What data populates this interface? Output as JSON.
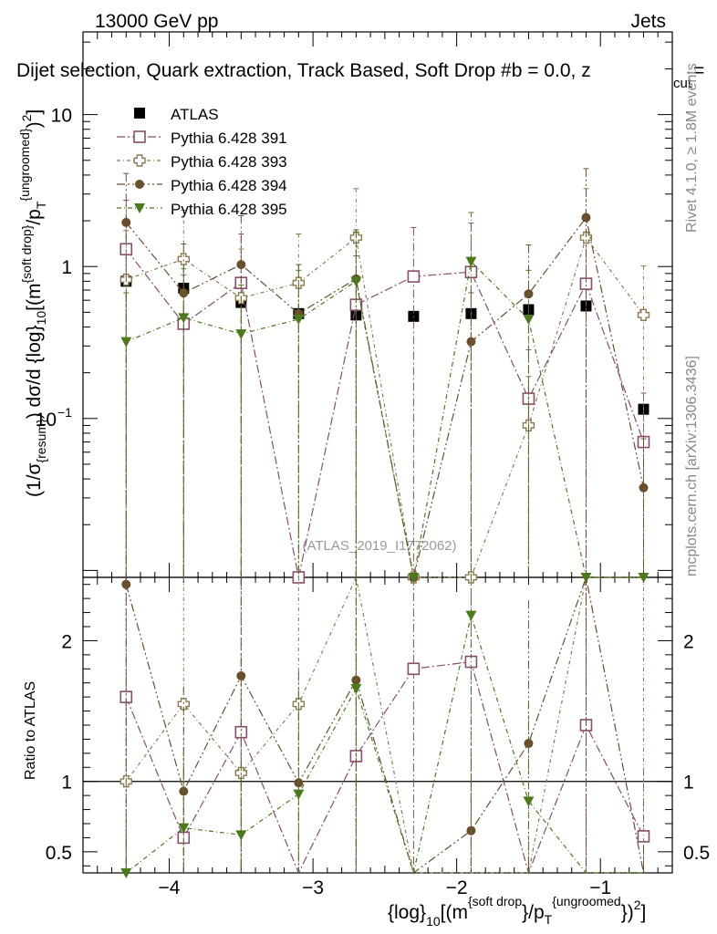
{
  "header": {
    "left": "13000 GeV pp",
    "right": "Jets"
  },
  "chart_data": {
    "type": "scatter",
    "title": "Dijet selection, Quark extraction, Track Based, Soft Drop #b = 0.0, z",
    "title_tail": "= 0.0, z",
    "title_sub": "cut",
    "title_end": " =",
    "watermark": "(ATLAS_2019_I1772062)",
    "rivet_label": "Rivet 4.1.0, ≥ 1.8M events",
    "mcplots_label": "mcplots.cern.ch [arXiv:1306.3436]",
    "ylabel": "(1/σ_{resum}) dσ/d {log}_{10}[(m^{soft drop}/p_{T}^{ungroomed})^{2}]",
    "ylabel_parts": {
      "a": "(1/σ",
      "a_sub": "{resum}",
      "b": ") dσ/d {log}",
      "b_sub": "10",
      "c": "[(m",
      "c_sup": "{soft drop}",
      "d": "/p",
      "d_sub": "T",
      "d_sup": "{ungroomed}",
      "e": ")",
      "e_sup": "2",
      "f": "]"
    },
    "xlabel": "{log}_{10}[(m^{soft drop}/p_{T}^{ungroomed})^{2}]",
    "xlabel_parts": {
      "a": "{log}",
      "a_sub": "10",
      "b": "[(m",
      "b_sup": "{soft drop",
      "c": "}/p",
      "c_sub": "T",
      "c_sup": "{ungroomed",
      "d": "})",
      "d_sup": "2",
      "e": "]"
    },
    "ratio_ylabel": "Ratio to ATLAS",
    "xlim": [
      -4.6,
      -0.5
    ],
    "ylim_main": [
      0.009,
      35
    ],
    "ylim_ratio": [
      0.35,
      2.45
    ],
    "x_ticks": [
      -4,
      -3,
      -2,
      -1
    ],
    "x_tick_labels": [
      "−4",
      "−3",
      "−2",
      "−1"
    ],
    "main_y_ticks": [
      0.1,
      1,
      10
    ],
    "main_y_tick_labels": [
      "10",
      "1",
      "10"
    ],
    "main_y_tick_exp": "−1",
    "ratio_y_ticks": [
      0.5,
      1,
      2
    ],
    "ratio_y_tick_labels": [
      "0.5",
      "1",
      "2"
    ],
    "x": [
      -4.3,
      -3.9,
      -3.5,
      -3.1,
      -2.7,
      -2.3,
      -1.9,
      -1.5,
      -1.1,
      -0.7
    ],
    "series": [
      {
        "name": "ATLAS",
        "color": "#000000",
        "marker": "square-filled",
        "values": [
          0.8,
          0.72,
          0.58,
          0.49,
          0.48,
          0.47,
          0.49,
          0.52,
          0.55,
          0.115
        ],
        "ratio": [
          1,
          1,
          1,
          1,
          1,
          1,
          1,
          1,
          1,
          1
        ]
      },
      {
        "name": "Pythia 6.428 391",
        "color": "#8a4d6a",
        "marker": "square-open",
        "values": [
          1.3,
          0.42,
          0.78,
          0.0045,
          0.56,
          0.86,
          0.92,
          0.135,
          0.77,
          0.07
        ],
        "ratio": [
          1.6,
          0.6,
          1.35,
          0.01,
          1.18,
          1.8,
          1.85,
          0.26,
          1.4,
          0.61
        ]
      },
      {
        "name": "Pythia 6.428 393",
        "color": "#8a7a4e",
        "marker": "cross-open",
        "values": [
          0.82,
          1.12,
          0.62,
          0.78,
          1.55,
          0.0045,
          0.0045,
          0.09,
          1.55,
          0.48
        ],
        "ratio": [
          1.0,
          1.55,
          1.06,
          1.55,
          3.2,
          0.01,
          0.01,
          0.17,
          2.9,
          4.2
        ]
      },
      {
        "name": "Pythia 6.428 394",
        "color": "#6b4e2e",
        "marker": "circle-filled",
        "values": [
          1.95,
          0.67,
          1.03,
          0.49,
          0.83,
          0.0045,
          0.32,
          0.66,
          2.1,
          0.035
        ],
        "ratio": [
          2.4,
          0.93,
          1.75,
          0.99,
          1.72,
          0.01,
          0.65,
          1.27,
          3.7,
          0.3
        ]
      },
      {
        "name": "Pythia 6.428 395",
        "color": "#4a7a1a",
        "marker": "triangle-down-filled",
        "values": [
          0.32,
          0.46,
          0.36,
          0.45,
          0.8,
          0.0045,
          1.08,
          0.45,
          0.0045,
          0.0045
        ],
        "ratio": [
          0.35,
          0.67,
          0.62,
          0.91,
          1.66,
          0.01,
          2.18,
          0.86,
          0.01,
          0.01
        ]
      }
    ],
    "legend": [
      "ATLAS",
      "Pythia 6.428 391",
      "Pythia 6.428 393",
      "Pythia 6.428 394",
      "Pythia 6.428 395"
    ]
  }
}
